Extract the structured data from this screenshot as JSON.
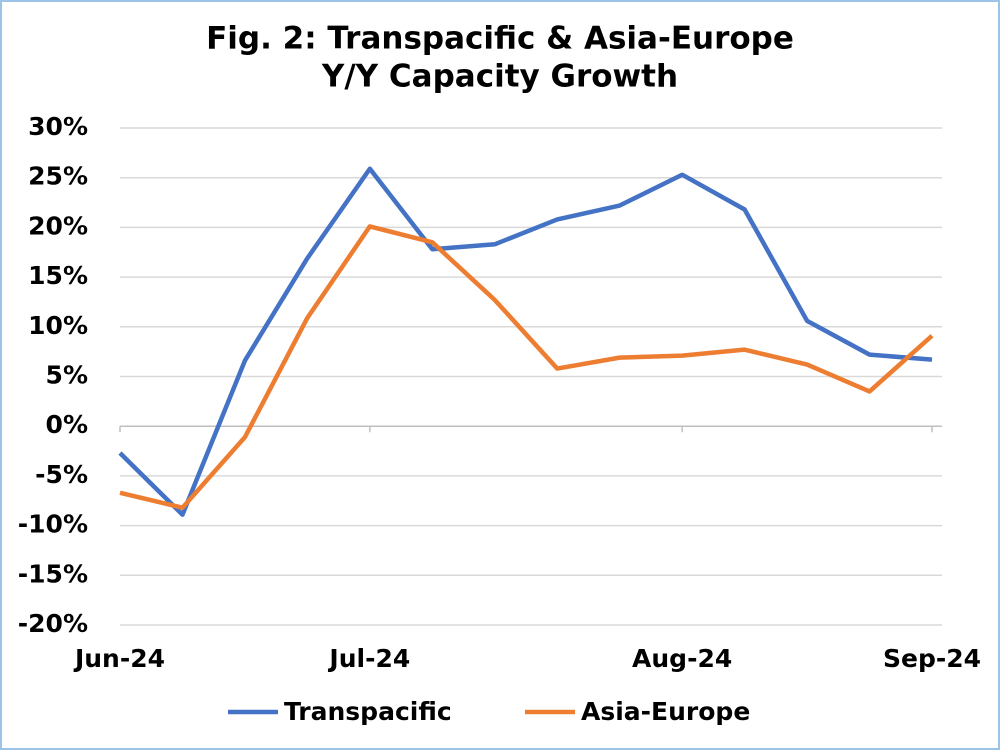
{
  "chart_data": {
    "type": "line",
    "title": [
      "Fig. 2: Transpacific & Asia-Europe",
      "Y/Y Capacity Growth"
    ],
    "categories": [
      "Jun-24",
      null,
      null,
      null,
      "Jul-24",
      null,
      null,
      null,
      null,
      "Aug-24",
      null,
      null,
      null,
      "Sep-24"
    ],
    "series": [
      {
        "name": "Transpacific",
        "color": "#4472c4",
        "values": [
          -2.7,
          -8.9,
          6.6,
          16.9,
          25.9,
          17.8,
          18.3,
          20.8,
          22.2,
          25.3,
          21.8,
          10.6,
          7.2,
          6.7
        ]
      },
      {
        "name": "Asia-Europe",
        "color": "#ed7d31",
        "values": [
          -6.7,
          -8.2,
          -1.1,
          10.9,
          20.1,
          18.5,
          12.7,
          5.8,
          6.9,
          7.1,
          7.7,
          6.2,
          3.5,
          9.1
        ]
      }
    ],
    "ylim": [
      -20,
      30
    ],
    "yticks": [
      {
        "value": -20,
        "label": "-20%"
      },
      {
        "value": -15,
        "label": "-15%"
      },
      {
        "value": -10,
        "label": "-10%"
      },
      {
        "value": -5,
        "label": "-5%"
      },
      {
        "value": 0,
        "label": "0%"
      },
      {
        "value": 5,
        "label": "5%"
      },
      {
        "value": 10,
        "label": "10%"
      },
      {
        "value": 15,
        "label": "15%"
      },
      {
        "value": 20,
        "label": "20%"
      },
      {
        "value": 25,
        "label": "25%"
      },
      {
        "value": 30,
        "label": "30%"
      }
    ],
    "grid": true,
    "legend": "bottom"
  }
}
